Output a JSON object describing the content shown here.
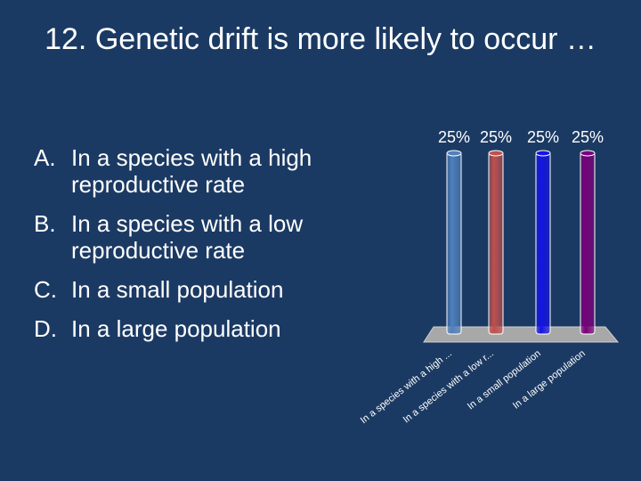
{
  "slide": {
    "title": "12.  Genetic drift is more likely to occur …",
    "options": [
      {
        "letter": "A.",
        "text": "In a species with a high reproductive rate"
      },
      {
        "letter": "B.",
        "text": "In a species with a low reproductive rate"
      },
      {
        "letter": "C.",
        "text": "In a small population"
      },
      {
        "letter": "D.",
        "text": "In a large population"
      }
    ]
  },
  "chart_data": {
    "type": "bar",
    "categories": [
      "In a species with a high ...",
      "In a species with a low r...",
      "In a small population",
      "In a large population"
    ],
    "values": [
      25,
      25,
      25,
      25
    ],
    "value_labels": [
      "25%",
      "25%",
      "25%",
      "25%"
    ],
    "colors": [
      "#4f81bd",
      "#c0504d",
      "#1414e6",
      "#7b007b"
    ],
    "ylim": [
      0,
      25
    ],
    "title": "",
    "xlabel": "",
    "ylabel": ""
  }
}
